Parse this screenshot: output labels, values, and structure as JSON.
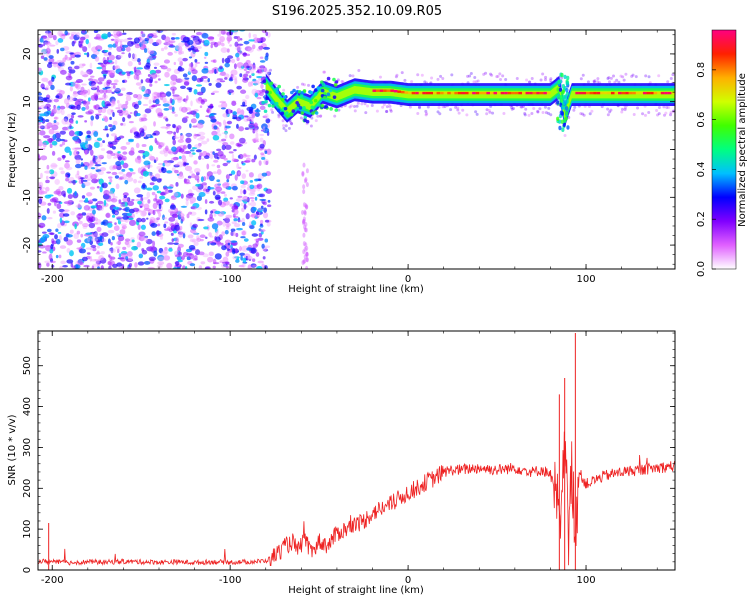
{
  "title": "S196.2025.352.10.09.R05",
  "chart_data": [
    {
      "type": "heatmap",
      "name": "spectrogram",
      "xlabel": "Height of straight line (km)",
      "ylabel": "Frequency (Hz)",
      "xlim": [
        -208,
        150
      ],
      "ylim": [
        -25,
        25
      ],
      "x_ticks": [
        -200,
        -100,
        0,
        100
      ],
      "y_ticks": [
        -20,
        -10,
        0,
        10,
        20
      ],
      "colorbar": {
        "label": "Normalized spectral amplitude",
        "range": [
          0,
          0.96
        ],
        "ticks": [
          "0.0",
          "0.2",
          "0.4",
          "0.6",
          "0.8"
        ],
        "colors": [
          "#ffffff",
          "#e060ff",
          "#8000ff",
          "#0000ff",
          "#00c0ff",
          "#00ff80",
          "#40ff00",
          "#d0ff00",
          "#ffb000",
          "#ff2000",
          "#ff0080"
        ]
      },
      "features": {
        "noise_region_x": [
          -208,
          -78
        ],
        "carrier_frequency_hz": 11.5,
        "carrier_x": [
          -78,
          150
        ],
        "carrier_track_points": [
          [
            -80,
            13.5
          ],
          [
            -75,
            11
          ],
          [
            -68,
            8
          ],
          [
            -62,
            10
          ],
          [
            -55,
            9
          ],
          [
            -48,
            12
          ],
          [
            -40,
            11
          ],
          [
            -30,
            12.5
          ],
          [
            -20,
            12
          ],
          [
            -10,
            12
          ],
          [
            0,
            11.5
          ],
          [
            20,
            11.5
          ],
          [
            40,
            11.5
          ],
          [
            60,
            11.5
          ],
          [
            80,
            11.5
          ],
          [
            85,
            13
          ],
          [
            88,
            7
          ],
          [
            92,
            11.5
          ],
          [
            100,
            11.5
          ],
          [
            120,
            11.5
          ],
          [
            150,
            11.5
          ]
        ]
      }
    },
    {
      "type": "line",
      "name": "snr",
      "xlabel": "Height of straight line (km)",
      "ylabel": "SNR (10 * v/v)",
      "xlim": [
        -208,
        150
      ],
      "ylim": [
        0,
        585
      ],
      "x_ticks": [
        -200,
        -100,
        0,
        100
      ],
      "y_ticks": [
        0,
        100,
        200,
        300,
        400,
        500
      ],
      "color": "#ee2222",
      "series": [
        {
          "name": "SNR",
          "x": [
            -208,
            -200,
            -190,
            -180,
            -170,
            -160,
            -150,
            -140,
            -130,
            -120,
            -110,
            -100,
            -90,
            -80,
            -75,
            -70,
            -65,
            -62,
            -58,
            -55,
            -50,
            -45,
            -40,
            -35,
            -30,
            -25,
            -20,
            -15,
            -10,
            -5,
            0,
            5,
            10,
            15,
            20,
            25,
            30,
            35,
            40,
            50,
            60,
            70,
            75,
            80,
            82,
            84,
            86,
            88,
            90,
            92,
            94,
            96,
            100,
            110,
            120,
            130,
            140,
            150
          ],
          "values": [
            22,
            20,
            18,
            20,
            19,
            21,
            20,
            19,
            20,
            18,
            20,
            19,
            20,
            22,
            35,
            55,
            70,
            45,
            80,
            40,
            70,
            60,
            90,
            100,
            110,
            120,
            140,
            150,
            160,
            175,
            190,
            200,
            215,
            225,
            240,
            245,
            245,
            248,
            250,
            245,
            250,
            240,
            245,
            235,
            200,
            150,
            80,
            330,
            60,
            250,
            100,
            240,
            210,
            230,
            240,
            245,
            250,
            255
          ]
        }
      ],
      "annotations": {
        "spikes": [
          [
            -202,
            115
          ],
          [
            85,
            430
          ],
          [
            88,
            470
          ],
          [
            94,
            580
          ]
        ]
      }
    }
  ]
}
